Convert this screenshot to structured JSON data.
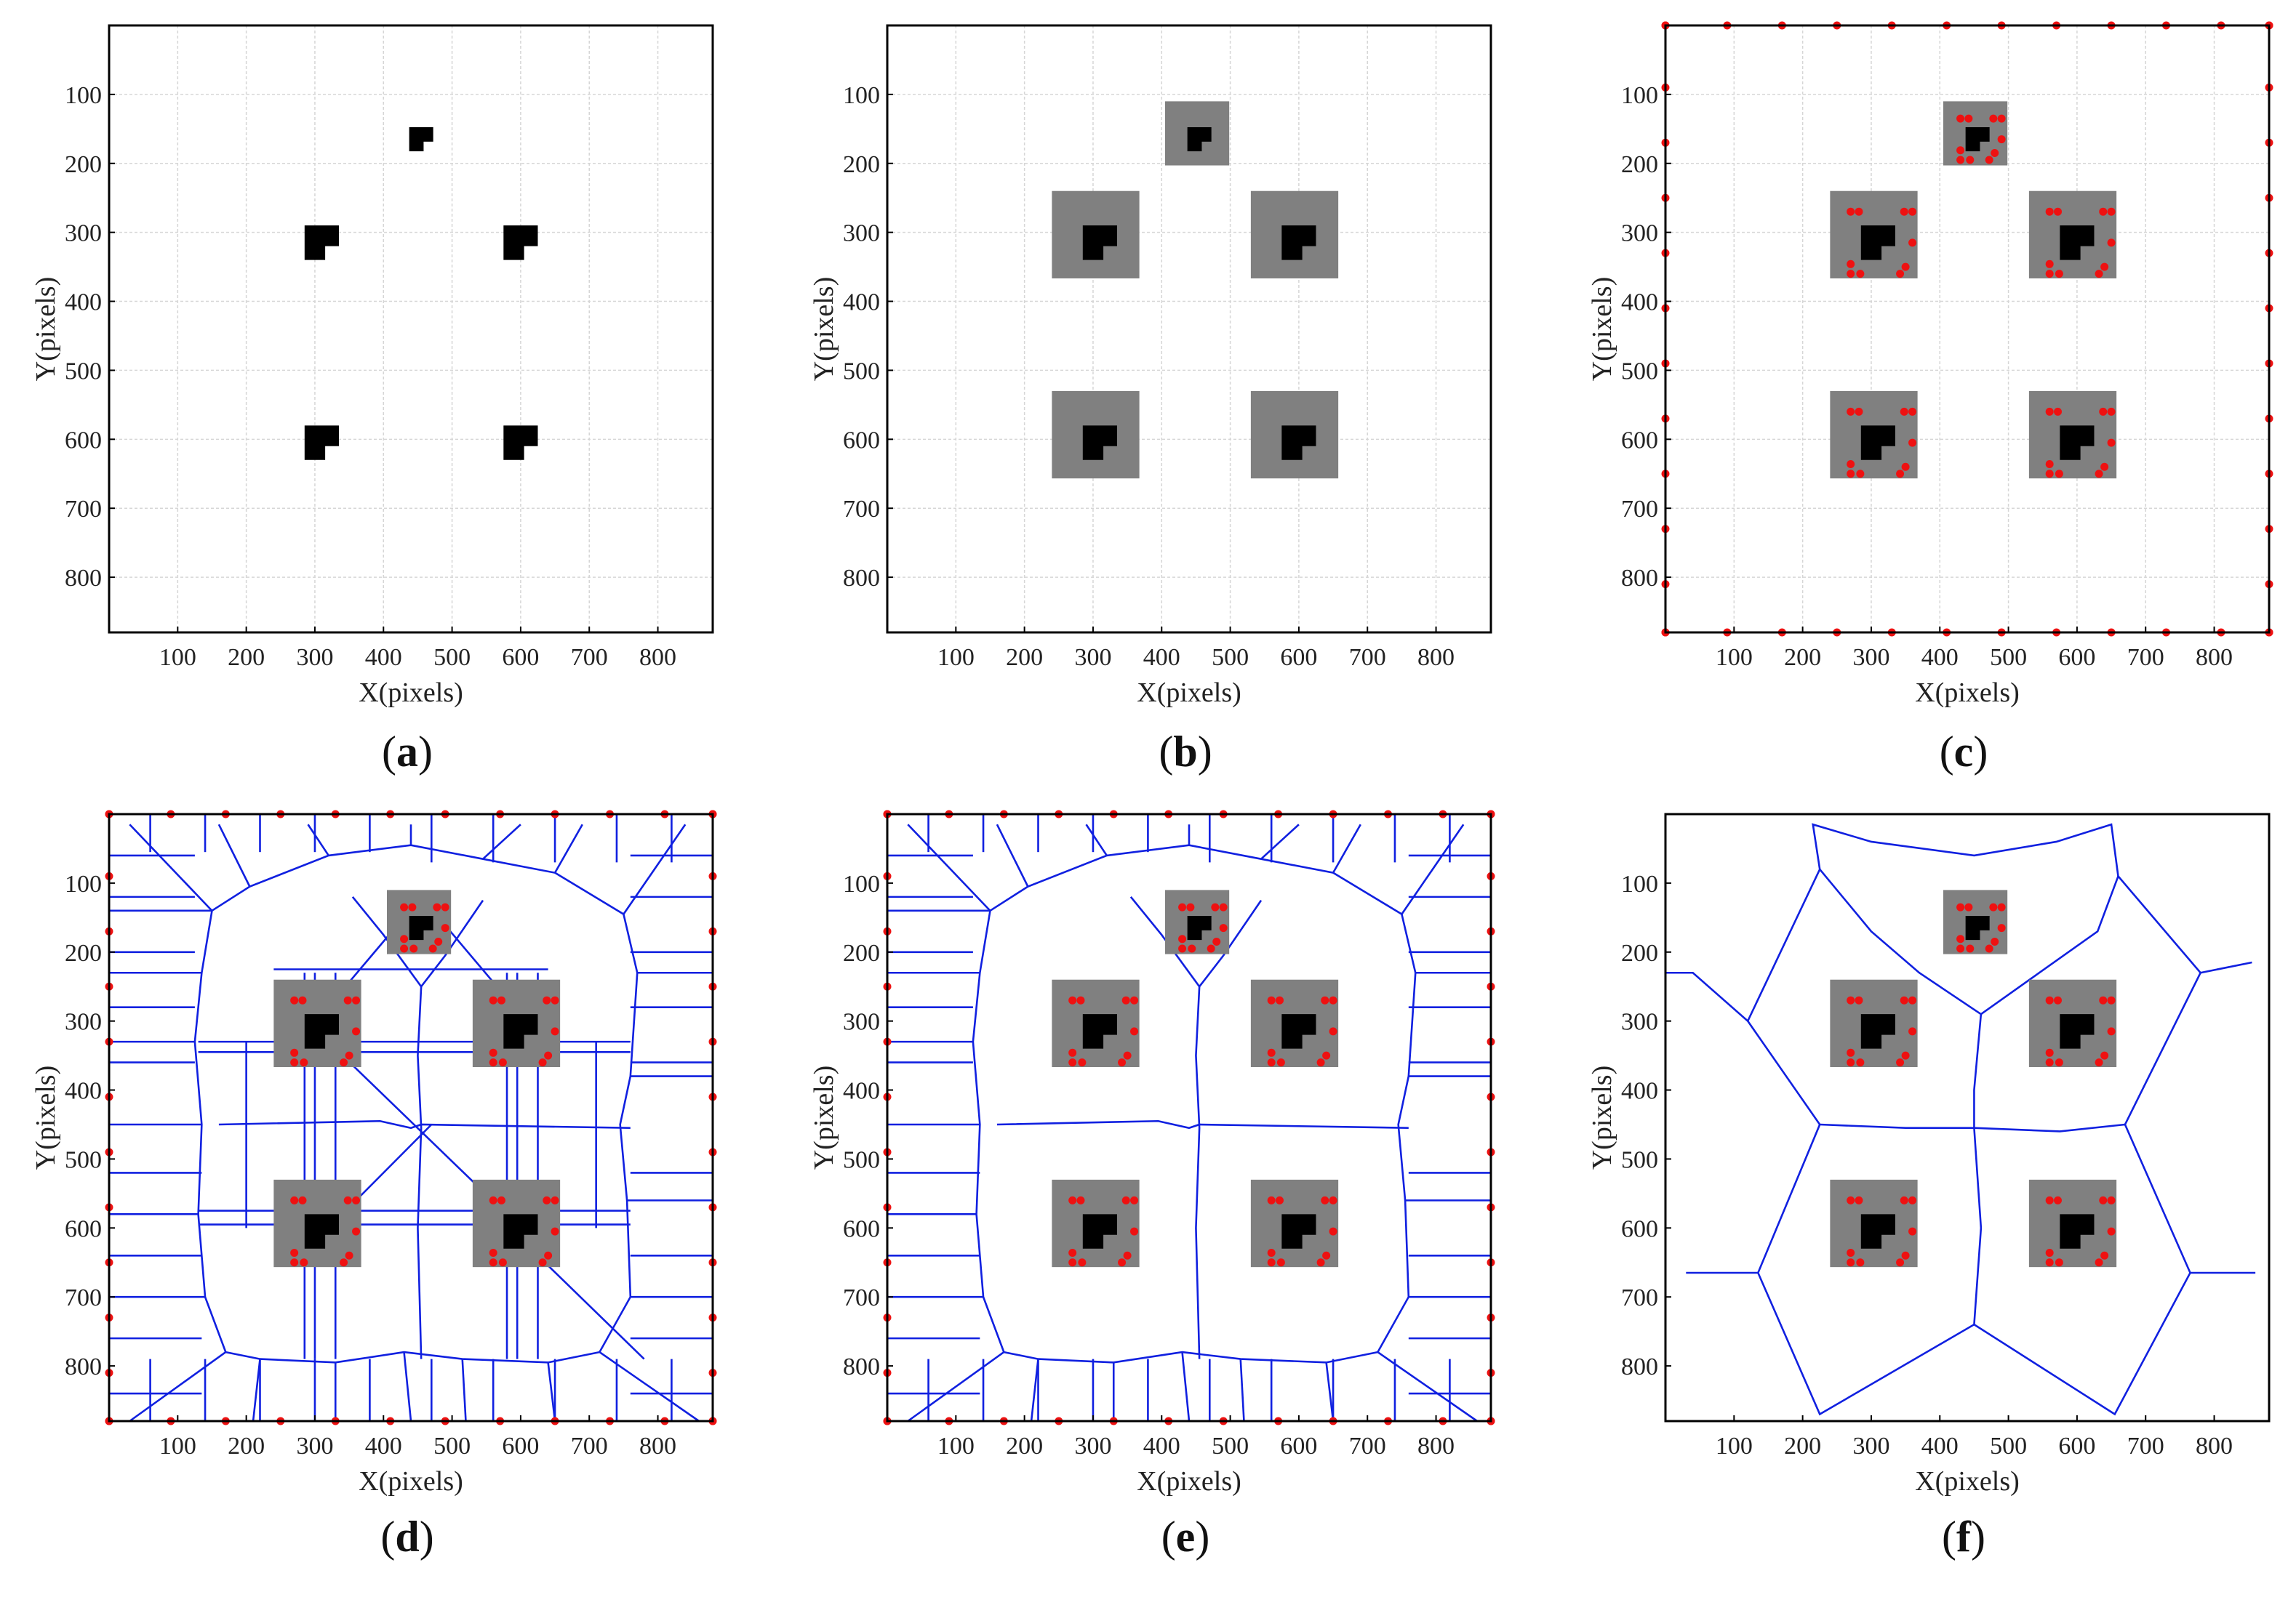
{
  "figure": {
    "title": ""
  },
  "chart_data": [
    {
      "id": "a",
      "label": "a",
      "type": "grid-map",
      "xlabel": "X(pixels)",
      "ylabel": "Y(pixels)",
      "xlim": [
        0,
        880
      ],
      "ylim": [
        0,
        880
      ],
      "y_inverted": true,
      "xticks": [
        100,
        200,
        300,
        400,
        500,
        600,
        700,
        800
      ],
      "yticks": [
        100,
        200,
        300,
        400,
        500,
        600,
        700,
        800
      ],
      "grid": true,
      "obstacles": [
        {
          "name": "top",
          "x": 460,
          "y": 165,
          "size": "small"
        },
        {
          "name": "upper-left",
          "x": 315,
          "y": 315,
          "size": "large"
        },
        {
          "name": "upper-right",
          "x": 605,
          "y": 315,
          "size": "large"
        },
        {
          "name": "lower-left",
          "x": 315,
          "y": 605,
          "size": "large"
        },
        {
          "name": "lower-right",
          "x": 605,
          "y": 605,
          "size": "large"
        }
      ],
      "inflated": false,
      "corner_points": false,
      "skeleton": "none"
    },
    {
      "id": "b",
      "label": "b",
      "type": "grid-map",
      "xlabel": "X(pixels)",
      "ylabel": "Y(pixels)",
      "xlim": [
        0,
        880
      ],
      "ylim": [
        0,
        880
      ],
      "y_inverted": true,
      "xticks": [
        100,
        200,
        300,
        400,
        500,
        600,
        700,
        800
      ],
      "yticks": [
        100,
        200,
        300,
        400,
        500,
        600,
        700,
        800
      ],
      "grid": true,
      "obstacles": [
        {
          "name": "top",
          "x": 460,
          "y": 165,
          "size": "small"
        },
        {
          "name": "upper-left",
          "x": 315,
          "y": 315,
          "size": "large"
        },
        {
          "name": "upper-right",
          "x": 605,
          "y": 315,
          "size": "large"
        },
        {
          "name": "lower-left",
          "x": 315,
          "y": 605,
          "size": "large"
        },
        {
          "name": "lower-right",
          "x": 605,
          "y": 605,
          "size": "large"
        }
      ],
      "inflated": true,
      "corner_points": false,
      "skeleton": "none"
    },
    {
      "id": "c",
      "label": "c",
      "type": "grid-map",
      "xlabel": "X(pixels)",
      "ylabel": "Y(pixels)",
      "xlim": [
        0,
        880
      ],
      "ylim": [
        0,
        880
      ],
      "y_inverted": true,
      "xticks": [
        100,
        200,
        300,
        400,
        500,
        600,
        700,
        800
      ],
      "yticks": [
        100,
        200,
        300,
        400,
        500,
        600,
        700,
        800
      ],
      "grid": true,
      "obstacles": [
        {
          "name": "top",
          "x": 460,
          "y": 165,
          "size": "small"
        },
        {
          "name": "upper-left",
          "x": 315,
          "y": 315,
          "size": "large"
        },
        {
          "name": "upper-right",
          "x": 605,
          "y": 315,
          "size": "large"
        },
        {
          "name": "lower-left",
          "x": 315,
          "y": 605,
          "size": "large"
        },
        {
          "name": "lower-right",
          "x": 605,
          "y": 605,
          "size": "large"
        }
      ],
      "inflated": true,
      "corner_points": true,
      "skeleton": "none"
    },
    {
      "id": "d",
      "label": "d",
      "type": "grid-map",
      "xlabel": "X(pixels)",
      "ylabel": "Y(pixels)",
      "xlim": [
        0,
        880
      ],
      "ylim": [
        0,
        880
      ],
      "y_inverted": true,
      "xticks": [
        100,
        200,
        300,
        400,
        500,
        600,
        700,
        800
      ],
      "yticks": [
        100,
        200,
        300,
        400,
        500,
        600,
        700,
        800
      ],
      "grid": false,
      "obstacles": [
        {
          "name": "top",
          "x": 460,
          "y": 165,
          "size": "small"
        },
        {
          "name": "upper-left",
          "x": 315,
          "y": 315,
          "size": "large"
        },
        {
          "name": "upper-right",
          "x": 605,
          "y": 315,
          "size": "large"
        },
        {
          "name": "lower-left",
          "x": 315,
          "y": 605,
          "size": "large"
        },
        {
          "name": "lower-right",
          "x": 605,
          "y": 605,
          "size": "large"
        }
      ],
      "inflated": true,
      "corner_points": true,
      "skeleton": "full"
    },
    {
      "id": "e",
      "label": "e",
      "type": "grid-map",
      "xlabel": "X(pixels)",
      "ylabel": "Y(pixels)",
      "xlim": [
        0,
        880
      ],
      "ylim": [
        0,
        880
      ],
      "y_inverted": true,
      "xticks": [
        100,
        200,
        300,
        400,
        500,
        600,
        700,
        800
      ],
      "yticks": [
        100,
        200,
        300,
        400,
        500,
        600,
        700,
        800
      ],
      "grid": false,
      "obstacles": [
        {
          "name": "top",
          "x": 460,
          "y": 165,
          "size": "small"
        },
        {
          "name": "upper-left",
          "x": 315,
          "y": 315,
          "size": "large"
        },
        {
          "name": "upper-right",
          "x": 605,
          "y": 315,
          "size": "large"
        },
        {
          "name": "lower-left",
          "x": 315,
          "y": 605,
          "size": "large"
        },
        {
          "name": "lower-right",
          "x": 605,
          "y": 605,
          "size": "large"
        }
      ],
      "inflated": true,
      "corner_points": true,
      "skeleton": "pruned"
    },
    {
      "id": "f",
      "label": "f",
      "type": "grid-map",
      "xlabel": "X(pixels)",
      "ylabel": "Y(pixels)",
      "xlim": [
        0,
        880
      ],
      "ylim": [
        0,
        880
      ],
      "y_inverted": true,
      "xticks": [
        100,
        200,
        300,
        400,
        500,
        600,
        700,
        800
      ],
      "yticks": [
        100,
        200,
        300,
        400,
        500,
        600,
        700,
        800
      ],
      "grid": false,
      "obstacles": [
        {
          "name": "top",
          "x": 460,
          "y": 165,
          "size": "small"
        },
        {
          "name": "upper-left",
          "x": 315,
          "y": 315,
          "size": "large"
        },
        {
          "name": "upper-right",
          "x": 605,
          "y": 315,
          "size": "large"
        },
        {
          "name": "lower-left",
          "x": 315,
          "y": 605,
          "size": "large"
        },
        {
          "name": "lower-right",
          "x": 605,
          "y": 605,
          "size": "large"
        }
      ],
      "inflated": true,
      "corner_points": "obstacles-only",
      "skeleton": "simplified"
    }
  ],
  "colors": {
    "obstacle": "#000000",
    "inflation": "#808080",
    "point": "#ee1111",
    "skeleton": "#1020e0",
    "grid": "#d6d6d6",
    "axis": "#000000"
  }
}
